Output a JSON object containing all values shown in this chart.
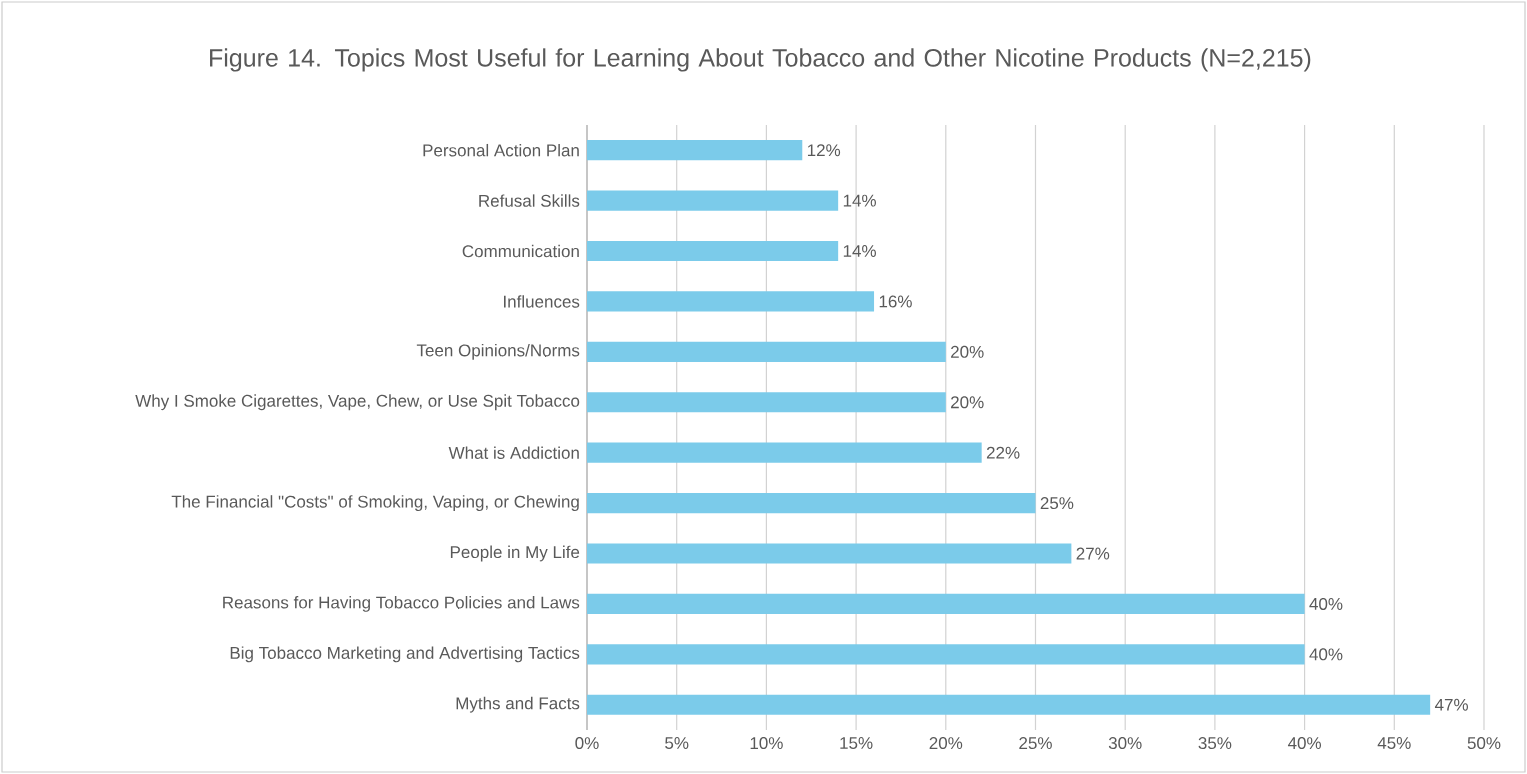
{
  "chart_data": {
    "type": "bar",
    "orientation": "horizontal",
    "title": "Figure 14. Topics Most Useful for Learning About Tobacco and Other Nicotine Products (N=2,215)",
    "categories": [
      "Personal Action Plan",
      "Refusal Skills",
      "Communication",
      "Influences",
      "Teen Opinions/Norms",
      "Why I Smoke Cigarettes, Vape, Chew, or Use Spit Tobacco",
      "What is Addiction",
      "The Financial \"Costs\" of Smoking, Vaping, or Chewing",
      "People in My Life",
      "Reasons for Having Tobacco Policies and Laws",
      "Big Tobacco Marketing and Advertising Tactics",
      "Myths and Facts"
    ],
    "values": [
      12,
      14,
      14,
      16,
      20,
      20,
      22,
      25,
      27,
      40,
      40,
      47
    ],
    "value_labels": [
      "12%",
      "14%",
      "14%",
      "16%",
      "20%",
      "20%",
      "22%",
      "25%",
      "27%",
      "40%",
      "40%",
      "47%"
    ],
    "color": "#7bcbea",
    "xlim": [
      0,
      50
    ],
    "xticks": [
      {
        "value": 0,
        "label": "0%"
      },
      {
        "value": 5,
        "label": "5%"
      },
      {
        "value": 10,
        "label": "10%"
      },
      {
        "value": 15,
        "label": "15%"
      },
      {
        "value": 20,
        "label": "20%"
      },
      {
        "value": 25,
        "label": "25%"
      },
      {
        "value": 30,
        "label": "30%"
      },
      {
        "value": 35,
        "label": "35%"
      },
      {
        "value": 40,
        "label": "40%"
      },
      {
        "value": 45,
        "label": "45%"
      },
      {
        "value": 50,
        "label": "50%"
      }
    ],
    "grid": "x"
  }
}
